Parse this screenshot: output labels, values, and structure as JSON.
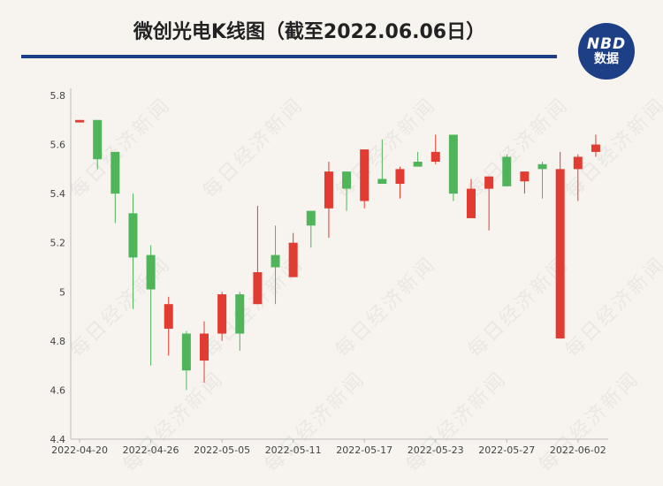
{
  "title": "微创光电K线图（截至2022.06.06日）",
  "logo": {
    "line1": "NBD",
    "line2": "数据"
  },
  "watermark": "每日经济新闻",
  "colors": {
    "up": "#e23b32",
    "down": "#4fb45a",
    "brand": "#1d3f86"
  },
  "chart_data": {
    "type": "candlestick",
    "title": "微创光电K线图（截至2022.06.06日）",
    "ylim": [
      4.4,
      5.8
    ],
    "yticks": [
      4.4,
      4.6,
      4.8,
      5,
      5.2,
      5.4,
      5.6,
      5.8
    ],
    "ytick_labels": [
      "4.4",
      "4.6",
      "4.8",
      "5",
      "5.2",
      "5.4",
      "5.6",
      "5.8"
    ],
    "xtick_labels": [
      "2022-04-20",
      "2022-04-26",
      "2022-05-05",
      "2022-05-11",
      "2022-05-17",
      "2022-05-23",
      "2022-05-27",
      "2022-06-02"
    ],
    "xtick_index": [
      0,
      4,
      8,
      12,
      16,
      20,
      24,
      28
    ],
    "grid": false,
    "candles": [
      {
        "open": 5.69,
        "close": 5.7,
        "high": 5.7,
        "low": 5.69
      },
      {
        "open": 5.7,
        "close": 5.54,
        "high": 5.7,
        "low": 5.5
      },
      {
        "open": 5.57,
        "close": 5.4,
        "high": 5.57,
        "low": 5.28
      },
      {
        "open": 5.32,
        "close": 5.14,
        "high": 5.4,
        "low": 4.93
      },
      {
        "open": 5.15,
        "close": 5.01,
        "high": 5.19,
        "low": 4.7
      },
      {
        "open": 4.85,
        "close": 4.95,
        "high": 4.98,
        "low": 4.74
      },
      {
        "open": 4.83,
        "close": 4.68,
        "high": 4.84,
        "low": 4.6
      },
      {
        "open": 4.72,
        "close": 4.83,
        "high": 4.88,
        "low": 4.63
      },
      {
        "open": 4.83,
        "close": 4.99,
        "high": 5.0,
        "low": 4.8
      },
      {
        "open": 4.99,
        "close": 4.83,
        "high": 5.0,
        "low": 4.76
      },
      {
        "open": 4.95,
        "close": 5.08,
        "high": 5.35,
        "low": 4.95
      },
      {
        "open": 5.15,
        "close": 5.1,
        "high": 5.27,
        "low": 4.95
      },
      {
        "open": 5.06,
        "close": 5.2,
        "high": 5.24,
        "low": 5.06
      },
      {
        "open": 5.33,
        "close": 5.27,
        "high": 5.33,
        "low": 5.18
      },
      {
        "open": 5.34,
        "close": 5.49,
        "high": 5.53,
        "low": 5.22
      },
      {
        "open": 5.49,
        "close": 5.42,
        "high": 5.49,
        "low": 5.33
      },
      {
        "open": 5.37,
        "close": 5.58,
        "high": 5.58,
        "low": 5.34
      },
      {
        "open": 5.46,
        "close": 5.44,
        "high": 5.62,
        "low": 5.44
      },
      {
        "open": 5.44,
        "close": 5.5,
        "high": 5.51,
        "low": 5.38
      },
      {
        "open": 5.53,
        "close": 5.51,
        "high": 5.57,
        "low": 5.51
      },
      {
        "open": 5.53,
        "close": 5.57,
        "high": 5.64,
        "low": 5.52
      },
      {
        "open": 5.64,
        "close": 5.4,
        "high": 5.64,
        "low": 5.37
      },
      {
        "open": 5.3,
        "close": 5.42,
        "high": 5.46,
        "low": 5.3
      },
      {
        "open": 5.42,
        "close": 5.47,
        "high": 5.47,
        "low": 5.25
      },
      {
        "open": 5.55,
        "close": 5.43,
        "high": 5.56,
        "low": 5.43
      },
      {
        "open": 5.45,
        "close": 5.49,
        "high": 5.49,
        "low": 5.4
      },
      {
        "open": 5.52,
        "close": 5.5,
        "high": 5.53,
        "low": 5.38
      },
      {
        "open": 4.81,
        "close": 5.5,
        "high": 5.57,
        "low": 4.81
      },
      {
        "open": 5.5,
        "close": 5.55,
        "high": 5.56,
        "low": 5.37
      },
      {
        "open": 5.57,
        "close": 5.6,
        "high": 5.64,
        "low": 5.55
      }
    ]
  }
}
